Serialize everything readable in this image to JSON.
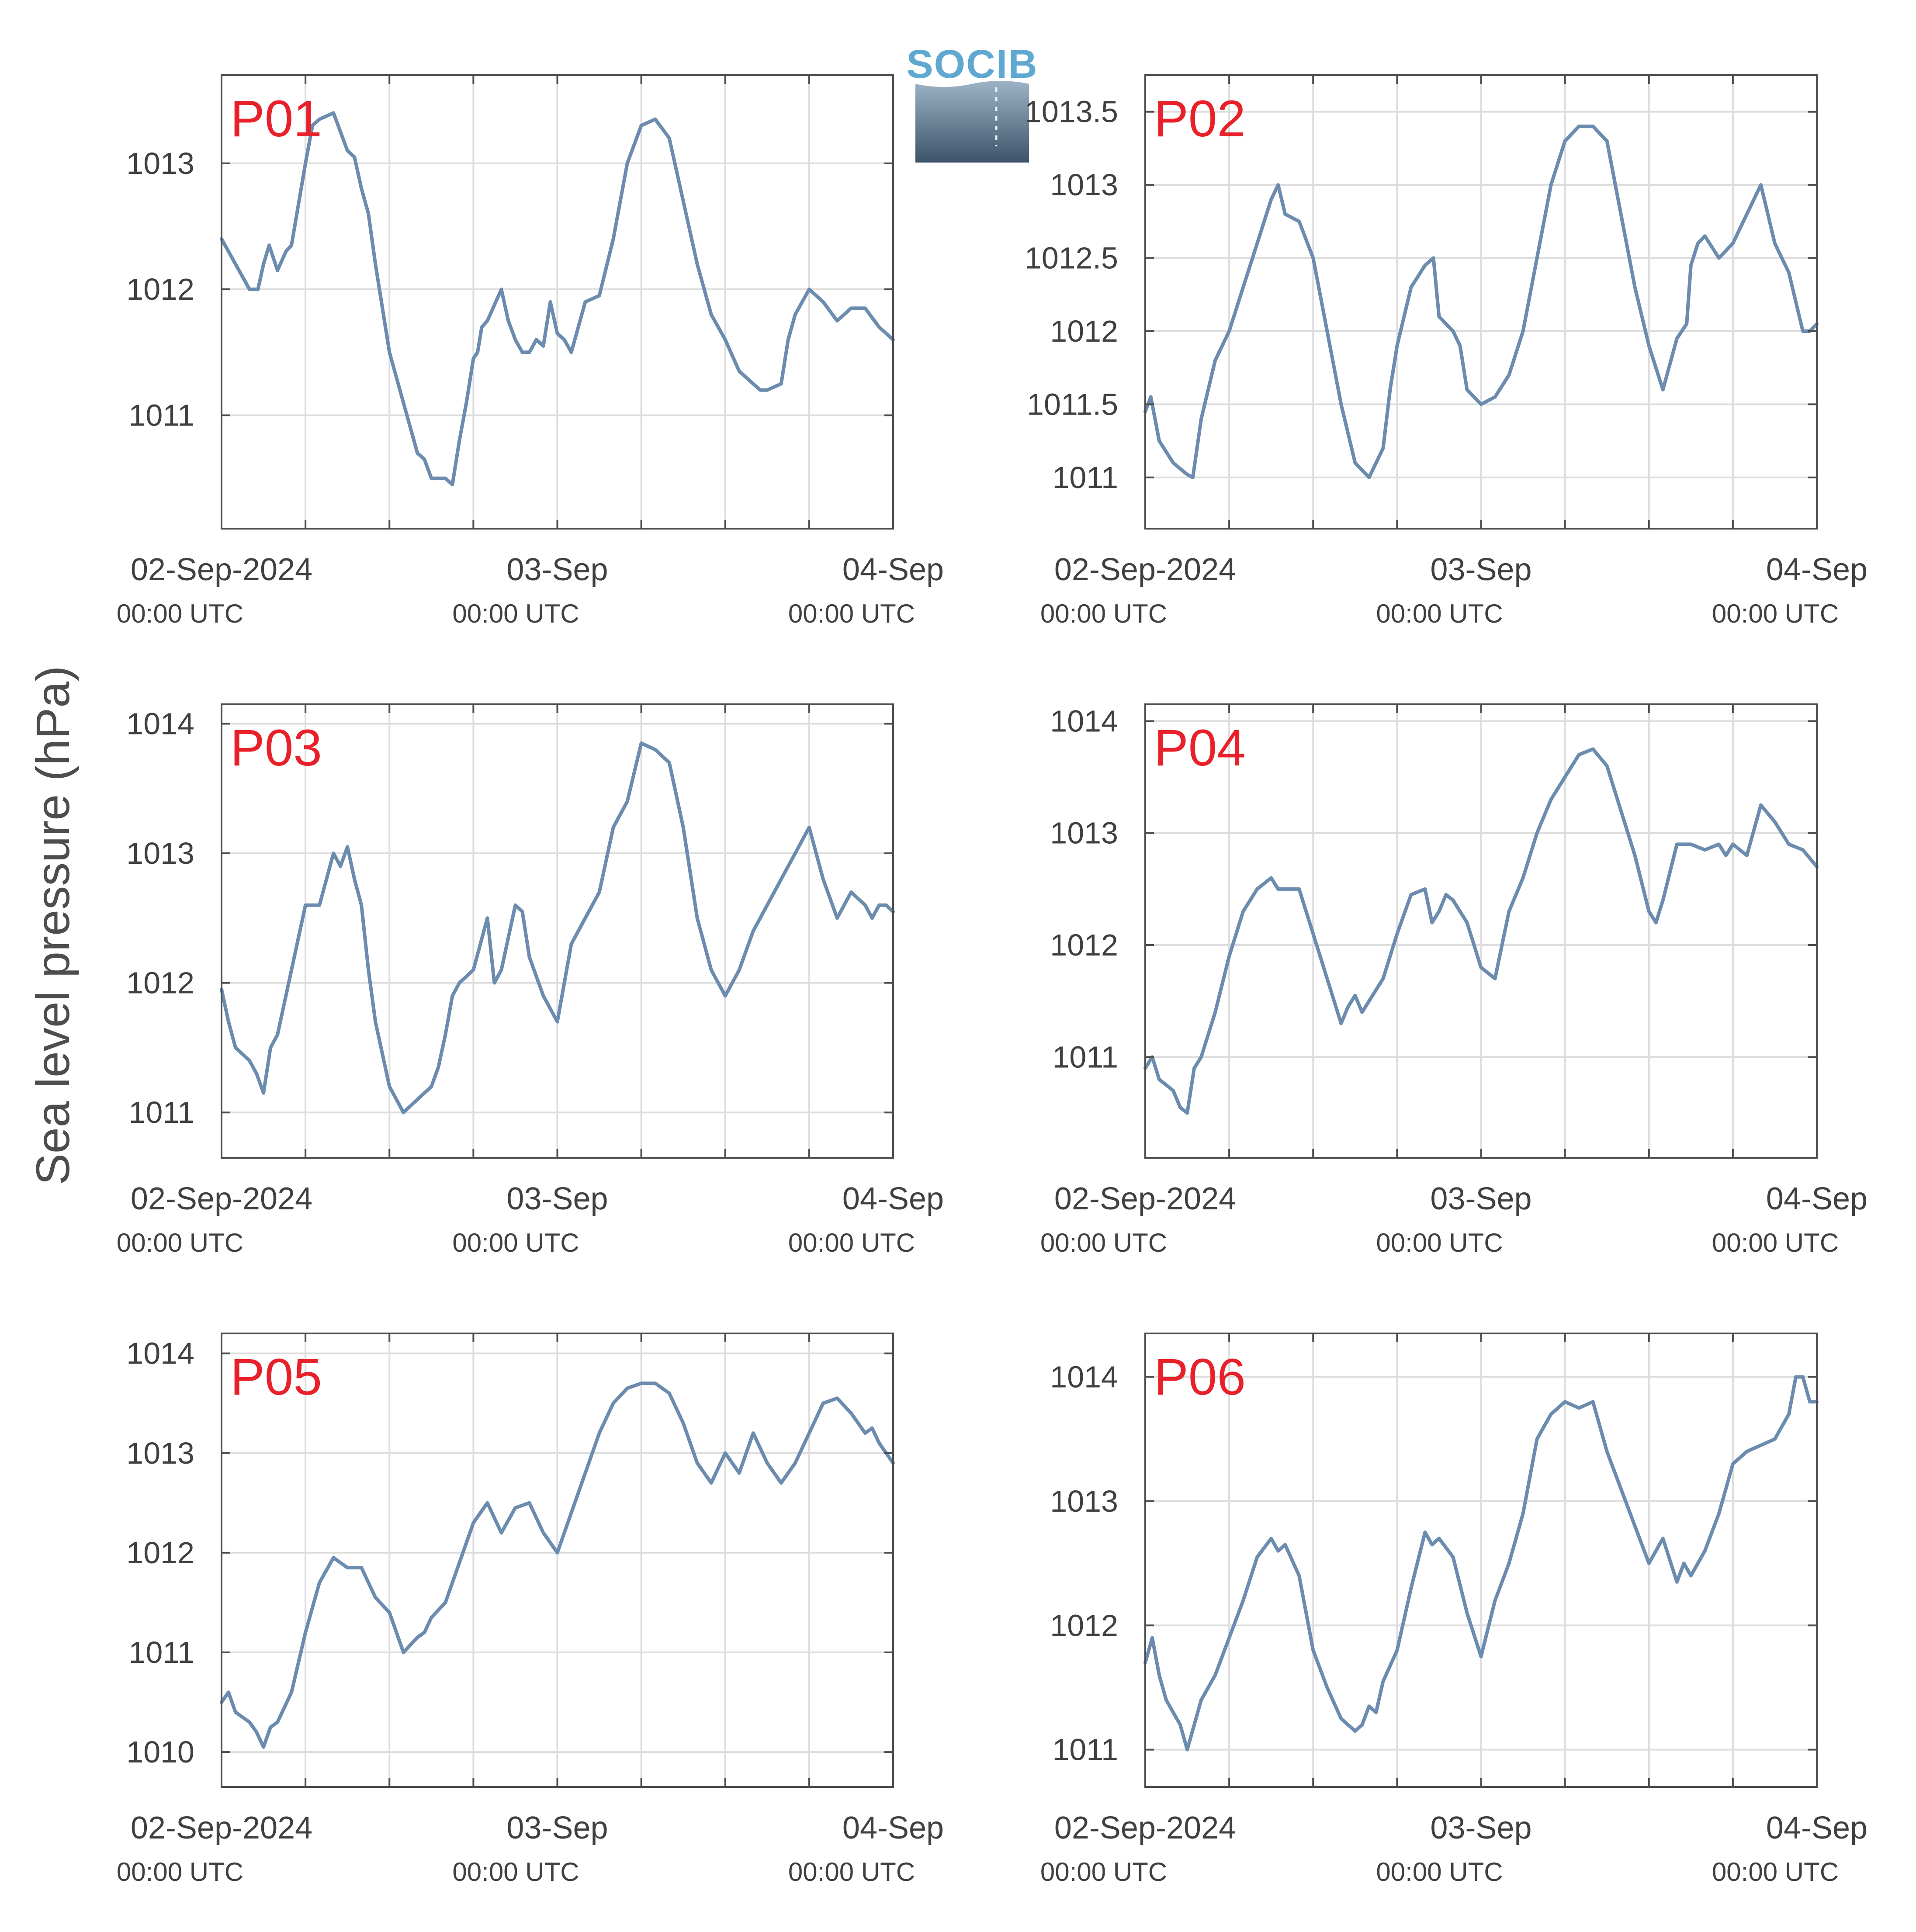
{
  "figure": {
    "ylabel": "Sea level pressure (hPa)",
    "logo_text": "SOCIB",
    "colors": {
      "line": "#6b8cae",
      "panel_label": "#e8202a",
      "grid": "#dddddd",
      "axis": "#4d4d4d",
      "text": "#404040"
    }
  },
  "x_axis": {
    "range_hours": [
      0,
      48
    ],
    "grid_step_hours": 6,
    "ticks": [
      {
        "date": "02-Sep-2024",
        "time": "00:00 UTC",
        "hour": 0
      },
      {
        "date": "03-Sep",
        "time": "00:00 UTC",
        "hour": 24
      },
      {
        "date": "04-Sep",
        "time": "00:00 UTC",
        "hour": 48
      }
    ]
  },
  "chart_data": [
    {
      "type": "line",
      "label": "P01",
      "ylim": [
        1010.1,
        1013.7
      ],
      "yticks": [
        1011,
        1012,
        1013
      ],
      "yticklabels": [
        "1011",
        "1012",
        "1013"
      ],
      "series": [
        {
          "x": [
            0,
            1,
            2,
            2.6,
            3,
            3.4,
            4,
            4.6,
            5,
            6,
            6.5,
            7,
            8,
            9,
            9.5,
            10,
            10.5,
            11,
            12,
            13,
            14,
            14.5,
            15,
            16,
            16.5,
            17,
            17.5,
            18,
            18.3,
            18.6,
            19,
            20,
            20.5,
            21,
            21.5,
            22,
            22.5,
            23,
            23.5,
            24,
            24.5,
            25,
            26,
            27,
            28,
            29,
            30,
            31,
            32,
            33,
            34,
            35,
            36,
            37,
            38,
            38.5,
            39,
            40,
            40.5,
            41,
            42,
            43,
            44,
            45,
            46,
            47,
            48
          ],
          "y": [
            1012.4,
            1012.2,
            1012.0,
            1012.0,
            1012.2,
            1012.35,
            1012.15,
            1012.3,
            1012.35,
            1013.0,
            1013.3,
            1013.35,
            1013.4,
            1013.1,
            1013.05,
            1012.8,
            1012.6,
            1012.2,
            1011.5,
            1011.1,
            1010.7,
            1010.65,
            1010.5,
            1010.5,
            1010.45,
            1010.8,
            1011.1,
            1011.45,
            1011.5,
            1011.7,
            1011.75,
            1012.0,
            1011.75,
            1011.6,
            1011.5,
            1011.5,
            1011.6,
            1011.55,
            1011.9,
            1011.65,
            1011.6,
            1011.5,
            1011.9,
            1011.95,
            1012.4,
            1013.0,
            1013.3,
            1013.35,
            1013.2,
            1012.7,
            1012.2,
            1011.8,
            1011.6,
            1011.35,
            1011.25,
            1011.2,
            1011.2,
            1011.25,
            1011.6,
            1011.8,
            1012.0,
            1011.9,
            1011.75,
            1011.85,
            1011.85,
            1011.7,
            1011.6
          ]
        }
      ]
    },
    {
      "type": "line",
      "label": "P02",
      "ylim": [
        1010.65,
        1013.75
      ],
      "yticks": [
        1011,
        1011.5,
        1012,
        1012.5,
        1013,
        1013.5
      ],
      "yticklabels": [
        "1011",
        "1011.5",
        "1012",
        "1012.5",
        "1013",
        "1013.5"
      ],
      "series": [
        {
          "x": [
            0,
            0.4,
            1,
            2,
            3,
            3.4,
            4,
            5,
            6,
            7,
            8,
            9,
            9.5,
            10,
            11,
            12,
            13,
            14,
            15,
            16,
            17,
            17.5,
            18,
            18.5,
            19,
            20,
            20.6,
            21,
            22,
            22.5,
            23,
            24,
            25,
            26,
            27,
            28,
            29,
            30,
            31,
            32,
            33,
            34,
            35,
            36,
            37,
            38,
            38.7,
            39,
            39.5,
            40,
            41,
            42,
            43,
            44,
            44.5,
            45,
            46,
            46.5,
            47,
            47.5,
            48
          ],
          "y": [
            1011.45,
            1011.55,
            1011.25,
            1011.1,
            1011.02,
            1011.0,
            1011.4,
            1011.8,
            1012.0,
            1012.3,
            1012.6,
            1012.9,
            1013.0,
            1012.8,
            1012.75,
            1012.5,
            1012.0,
            1011.5,
            1011.1,
            1011.0,
            1011.2,
            1011.6,
            1011.9,
            1012.1,
            1012.3,
            1012.45,
            1012.5,
            1012.1,
            1012.0,
            1011.9,
            1011.6,
            1011.5,
            1011.55,
            1011.7,
            1012.0,
            1012.5,
            1013.0,
            1013.3,
            1013.4,
            1013.4,
            1013.3,
            1012.8,
            1012.3,
            1011.9,
            1011.6,
            1011.95,
            1012.05,
            1012.45,
            1012.6,
            1012.65,
            1012.5,
            1012.6,
            1012.8,
            1013.0,
            1012.8,
            1012.6,
            1012.4,
            1012.2,
            1012.0,
            1012.0,
            1012.05
          ]
        }
      ]
    },
    {
      "type": "line",
      "label": "P03",
      "ylim": [
        1010.65,
        1014.15
      ],
      "yticks": [
        1011,
        1012,
        1013,
        1014
      ],
      "yticklabels": [
        "1011",
        "1012",
        "1013",
        "1014"
      ],
      "series": [
        {
          "x": [
            0,
            0.5,
            1,
            1.5,
            2,
            2.5,
            3,
            3.5,
            4,
            5,
            6,
            7,
            8,
            8.5,
            9,
            9.5,
            10,
            10.5,
            11,
            12,
            13,
            14,
            15,
            15.5,
            16,
            16.5,
            17,
            18,
            19,
            19.5,
            20,
            21,
            21.5,
            22,
            23,
            24,
            25,
            26,
            27,
            28,
            29,
            30,
            31,
            32,
            33,
            34,
            35,
            36,
            37,
            38,
            39,
            40,
            41,
            42,
            43,
            44,
            45,
            46,
            46.5,
            47,
            47.5,
            48
          ],
          "y": [
            1011.95,
            1011.7,
            1011.5,
            1011.45,
            1011.4,
            1011.3,
            1011.15,
            1011.5,
            1011.6,
            1012.1,
            1012.6,
            1012.6,
            1013.0,
            1012.9,
            1013.05,
            1012.8,
            1012.6,
            1012.1,
            1011.7,
            1011.2,
            1011.0,
            1011.1,
            1011.2,
            1011.35,
            1011.6,
            1011.9,
            1012.0,
            1012.1,
            1012.5,
            1012.0,
            1012.1,
            1012.6,
            1012.55,
            1012.2,
            1011.9,
            1011.7,
            1012.3,
            1012.5,
            1012.7,
            1013.2,
            1013.4,
            1013.85,
            1013.8,
            1013.7,
            1013.2,
            1012.5,
            1012.1,
            1011.9,
            1012.1,
            1012.4,
            1012.6,
            1012.8,
            1013.0,
            1013.2,
            1012.8,
            1012.5,
            1012.7,
            1012.6,
            1012.5,
            1012.6,
            1012.6,
            1012.55
          ]
        }
      ]
    },
    {
      "type": "line",
      "label": "P04",
      "ylim": [
        1010.1,
        1014.15
      ],
      "yticks": [
        1011,
        1012,
        1013,
        1014
      ],
      "yticklabels": [
        "1011",
        "1012",
        "1013",
        "1014"
      ],
      "series": [
        {
          "x": [
            0,
            0.5,
            1,
            1.5,
            2,
            2.5,
            3,
            3.5,
            4,
            5,
            6,
            7,
            8,
            9,
            9.5,
            10,
            11,
            12,
            13,
            14,
            14.5,
            15,
            15.5,
            16,
            17,
            18,
            19,
            20,
            20.5,
            21,
            21.5,
            22,
            23,
            24,
            25,
            26,
            27,
            28,
            29,
            30,
            31,
            32,
            33,
            34,
            35,
            36,
            36.5,
            37,
            38,
            39,
            40,
            41,
            41.5,
            42,
            43,
            44,
            45,
            46,
            47,
            48
          ],
          "y": [
            1010.9,
            1011.0,
            1010.8,
            1010.75,
            1010.7,
            1010.55,
            1010.5,
            1010.9,
            1011.0,
            1011.4,
            1011.9,
            1012.3,
            1012.5,
            1012.6,
            1012.5,
            1012.5,
            1012.5,
            1012.1,
            1011.7,
            1011.3,
            1011.45,
            1011.55,
            1011.4,
            1011.5,
            1011.7,
            1012.1,
            1012.45,
            1012.5,
            1012.2,
            1012.3,
            1012.45,
            1012.4,
            1012.2,
            1011.8,
            1011.7,
            1012.3,
            1012.6,
            1013.0,
            1013.3,
            1013.5,
            1013.7,
            1013.75,
            1013.6,
            1013.2,
            1012.8,
            1012.3,
            1012.2,
            1012.4,
            1012.9,
            1012.9,
            1012.85,
            1012.9,
            1012.8,
            1012.9,
            1012.8,
            1013.25,
            1013.1,
            1012.9,
            1012.85,
            1012.7
          ]
        }
      ]
    },
    {
      "type": "line",
      "label": "P05",
      "ylim": [
        1009.65,
        1014.2
      ],
      "yticks": [
        1010,
        1011,
        1012,
        1013,
        1014
      ],
      "yticklabels": [
        "1010",
        "1011",
        "1012",
        "1013",
        "1014"
      ],
      "series": [
        {
          "x": [
            0,
            0.5,
            1,
            1.5,
            2,
            2.5,
            3,
            3.5,
            4,
            5,
            6,
            7,
            8,
            9,
            10,
            11,
            12,
            13,
            14,
            14.5,
            15,
            16,
            17,
            18,
            19,
            20,
            21,
            22,
            23,
            24,
            25,
            26,
            27,
            28,
            29,
            30,
            31,
            32,
            33,
            34,
            35,
            36,
            37,
            38,
            39,
            40,
            41,
            42,
            43,
            44,
            45,
            46,
            46.5,
            47,
            47.5,
            48
          ],
          "y": [
            1010.5,
            1010.6,
            1010.4,
            1010.35,
            1010.3,
            1010.2,
            1010.05,
            1010.25,
            1010.3,
            1010.6,
            1011.2,
            1011.7,
            1011.95,
            1011.85,
            1011.85,
            1011.55,
            1011.4,
            1011.0,
            1011.15,
            1011.2,
            1011.35,
            1011.5,
            1011.9,
            1012.3,
            1012.5,
            1012.2,
            1012.45,
            1012.5,
            1012.2,
            1012.0,
            1012.4,
            1012.8,
            1013.2,
            1013.5,
            1013.65,
            1013.7,
            1013.7,
            1013.6,
            1013.3,
            1012.9,
            1012.7,
            1013.0,
            1012.8,
            1013.2,
            1012.9,
            1012.7,
            1012.9,
            1013.2,
            1013.5,
            1013.55,
            1013.4,
            1013.2,
            1013.25,
            1013.1,
            1013.0,
            1012.9
          ]
        }
      ]
    },
    {
      "type": "line",
      "label": "P06",
      "ylim": [
        1010.7,
        1014.35
      ],
      "yticks": [
        1011,
        1012,
        1013,
        1014
      ],
      "yticklabels": [
        "1011",
        "1012",
        "1013",
        "1014"
      ],
      "series": [
        {
          "x": [
            0,
            0.5,
            1,
            1.5,
            2,
            2.5,
            3,
            3.5,
            4,
            5,
            6,
            7,
            8,
            9,
            9.5,
            10,
            11,
            12,
            13,
            14,
            15,
            15.5,
            16,
            16.5,
            17,
            18,
            19,
            20,
            20.5,
            21,
            22,
            23,
            24,
            25,
            26,
            27,
            28,
            29,
            30,
            31,
            32,
            33,
            34,
            35,
            36,
            37,
            38,
            38.5,
            39,
            40,
            41,
            42,
            43,
            44,
            45,
            46,
            46.5,
            47,
            47.5,
            48
          ],
          "y": [
            1011.7,
            1011.9,
            1011.6,
            1011.4,
            1011.3,
            1011.2,
            1011.0,
            1011.2,
            1011.4,
            1011.6,
            1011.9,
            1012.2,
            1012.55,
            1012.7,
            1012.6,
            1012.65,
            1012.4,
            1011.8,
            1011.5,
            1011.25,
            1011.15,
            1011.2,
            1011.35,
            1011.3,
            1011.55,
            1011.8,
            1012.3,
            1012.75,
            1012.65,
            1012.7,
            1012.55,
            1012.1,
            1011.75,
            1012.2,
            1012.5,
            1012.9,
            1013.5,
            1013.7,
            1013.8,
            1013.75,
            1013.8,
            1013.4,
            1013.1,
            1012.8,
            1012.5,
            1012.7,
            1012.35,
            1012.5,
            1012.4,
            1012.6,
            1012.9,
            1013.3,
            1013.4,
            1013.45,
            1013.5,
            1013.7,
            1014.0,
            1014.0,
            1013.8,
            1013.8
          ]
        }
      ]
    }
  ]
}
